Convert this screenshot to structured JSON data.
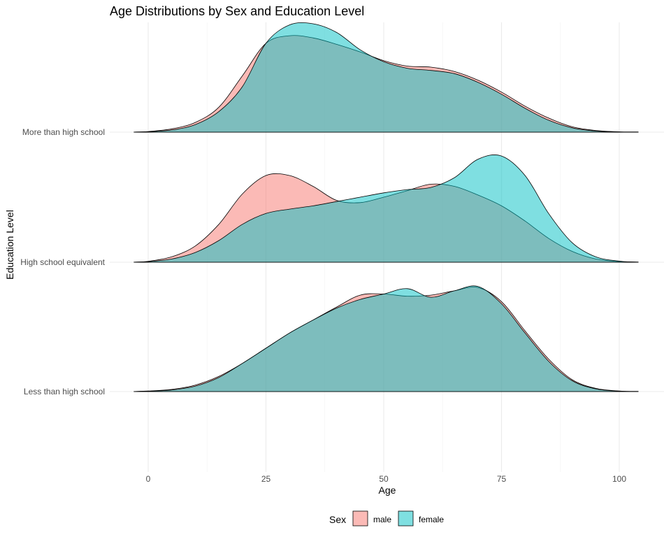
{
  "chart_data": {
    "type": "area",
    "subtype": "ridgeline-density",
    "title": "Age Distributions by Sex and Education Level",
    "xlabel": "Age",
    "ylabel": "Education Level",
    "xlim": [
      -3,
      104
    ],
    "x_ticks": [
      0,
      25,
      50,
      75,
      100
    ],
    "grid": true,
    "legend": {
      "title": "Sex",
      "position": "bottom",
      "entries": [
        {
          "label": "male",
          "color": "#F8766D"
        },
        {
          "label": "female",
          "color": "#00BFC4"
        }
      ]
    },
    "fill_alpha": 0.5,
    "x": [
      -3,
      0,
      5,
      10,
      15,
      20,
      25,
      30,
      35,
      40,
      45,
      50,
      55,
      60,
      65,
      70,
      75,
      80,
      85,
      90,
      95,
      100,
      104
    ],
    "groups": [
      {
        "label": "More than high school",
        "series": [
          {
            "name": "male",
            "color": "#F8766D",
            "values": [
              0.001,
              0.006,
              0.03,
              0.09,
              0.23,
              0.52,
              0.82,
              0.89,
              0.87,
              0.81,
              0.74,
              0.66,
              0.61,
              0.6,
              0.56,
              0.48,
              0.37,
              0.24,
              0.13,
              0.05,
              0.015,
              0.003,
              0.001
            ]
          },
          {
            "name": "female",
            "color": "#00BFC4",
            "values": [
              0.001,
              0.004,
              0.02,
              0.07,
              0.19,
              0.42,
              0.82,
              0.99,
              1.0,
              0.92,
              0.76,
              0.65,
              0.59,
              0.57,
              0.54,
              0.46,
              0.35,
              0.22,
              0.11,
              0.04,
              0.01,
              0.002,
              0.001
            ]
          }
        ]
      },
      {
        "label": "High school equivalent",
        "series": [
          {
            "name": "male",
            "color": "#F8766D",
            "values": [
              0.001,
              0.008,
              0.05,
              0.15,
              0.35,
              0.63,
              0.8,
              0.8,
              0.7,
              0.57,
              0.55,
              0.6,
              0.66,
              0.72,
              0.7,
              0.62,
              0.52,
              0.38,
              0.22,
              0.1,
              0.03,
              0.006,
              0.001
            ]
          },
          {
            "name": "female",
            "color": "#00BFC4",
            "values": [
              0.001,
              0.005,
              0.03,
              0.09,
              0.2,
              0.35,
              0.45,
              0.49,
              0.52,
              0.56,
              0.6,
              0.64,
              0.67,
              0.69,
              0.78,
              0.95,
              0.98,
              0.8,
              0.45,
              0.18,
              0.05,
              0.01,
              0.001
            ]
          }
        ]
      },
      {
        "label": "Less than high school",
        "series": [
          {
            "name": "male",
            "color": "#F8766D",
            "values": [
              0.001,
              0.005,
              0.02,
              0.06,
              0.14,
              0.26,
              0.4,
              0.54,
              0.66,
              0.78,
              0.89,
              0.9,
              0.88,
              0.89,
              0.93,
              0.96,
              0.83,
              0.56,
              0.3,
              0.11,
              0.03,
              0.005,
              0.001
            ]
          },
          {
            "name": "female",
            "color": "#00BFC4",
            "values": [
              0.001,
              0.004,
              0.015,
              0.05,
              0.13,
              0.26,
              0.4,
              0.54,
              0.66,
              0.77,
              0.85,
              0.9,
              0.95,
              0.87,
              0.93,
              0.97,
              0.81,
              0.54,
              0.28,
              0.1,
              0.025,
              0.004,
              0.001
            ]
          }
        ]
      }
    ]
  }
}
